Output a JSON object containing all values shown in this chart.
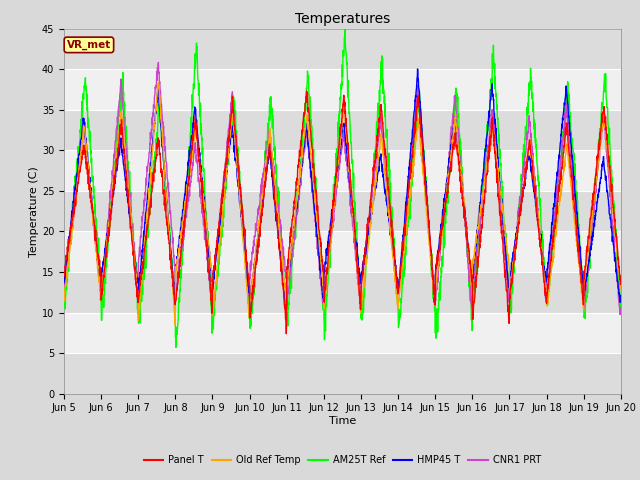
{
  "title": "Temperatures",
  "xlabel": "Time",
  "ylabel": "Temperature (C)",
  "ylim": [
    0,
    45
  ],
  "n_days": 15,
  "annotation": "VR_met",
  "legend": [
    "Panel T",
    "Old Ref Temp",
    "AM25T Ref",
    "HMP45 T",
    "CNR1 PRT"
  ],
  "colors": [
    "red",
    "orange",
    "lime",
    "blue",
    "#cc44cc"
  ],
  "bg_color": "#d9d9d9",
  "plot_bg_light": "#f0f0f0",
  "plot_bg_dark": "#dcdcdc",
  "tick_labels": [
    "Jun 5",
    "Jun 6",
    "Jun 7",
    "Jun 8",
    "Jun 9",
    "Jun 10",
    "Jun 11",
    "Jun 12",
    "Jun 13",
    "Jun 14",
    "Jun 15",
    "Jun 16",
    "Jun 17",
    "Jun 18",
    "Jun 19",
    "Jun 20"
  ],
  "figsize": [
    6.4,
    4.8
  ],
  "dpi": 100,
  "title_fontsize": 10,
  "axis_fontsize": 8,
  "tick_fontsize": 7
}
